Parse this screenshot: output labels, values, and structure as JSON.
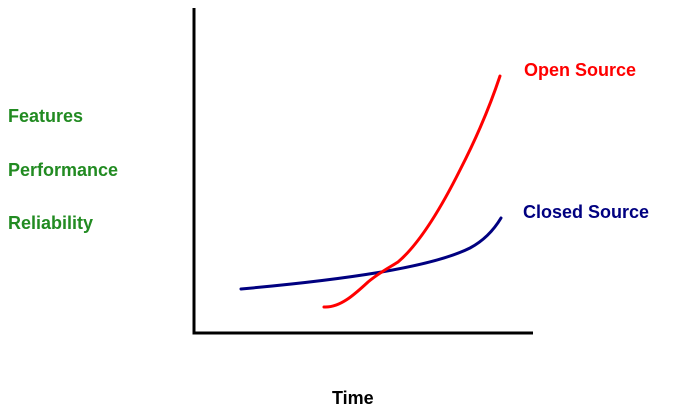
{
  "diagram": {
    "y_axis_labels": [
      "Features",
      "Performance",
      "Reliability"
    ],
    "x_axis_label": "Time",
    "curves": {
      "open_source": {
        "label": "Open Source",
        "color": "#ff0000"
      },
      "closed_source": {
        "label": "Closed Source",
        "color": "#000080"
      }
    },
    "y_label_color": "#228b22",
    "axis_color": "#000000"
  }
}
